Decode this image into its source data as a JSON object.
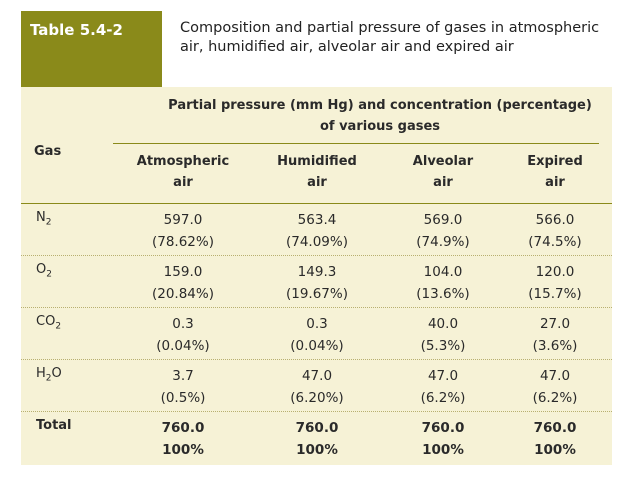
{
  "table_number": "Table 5.4-2",
  "caption": "Composition and partial pressure of gases in atmospheric air, humidified air, alveolar air and expired air",
  "gas_header": "Gas",
  "span_header": "Partial pressure (mm Hg) and concentration (percentage) of various gases",
  "columns": [
    {
      "line1": "Atmospheric",
      "line2": "air"
    },
    {
      "line1": "Humidified",
      "line2": "air"
    },
    {
      "line1": "Alveolar",
      "line2": "air"
    },
    {
      "line1": "Expired",
      "line2": "air"
    }
  ],
  "rows": [
    {
      "gas_base": "N",
      "gas_sub": "2",
      "values": [
        {
          "pressure": "597.0",
          "percent": "(78.62%)"
        },
        {
          "pressure": "563.4",
          "percent": "(74.09%)"
        },
        {
          "pressure": "569.0",
          "percent": "(74.9%)"
        },
        {
          "pressure": "566.0",
          "percent": "(74.5%)"
        }
      ]
    },
    {
      "gas_base": "O",
      "gas_sub": "2",
      "values": [
        {
          "pressure": "159.0",
          "percent": "(20.84%)"
        },
        {
          "pressure": "149.3",
          "percent": "(19.67%)"
        },
        {
          "pressure": "104.0",
          "percent": "(13.6%)"
        },
        {
          "pressure": "120.0",
          "percent": "(15.7%)"
        }
      ]
    },
    {
      "gas_base": "CO",
      "gas_sub": "2",
      "values": [
        {
          "pressure": "0.3",
          "percent": "(0.04%)"
        },
        {
          "pressure": "0.3",
          "percent": "(0.04%)"
        },
        {
          "pressure": "40.0",
          "percent": "(5.3%)"
        },
        {
          "pressure": "27.0",
          "percent": "(3.6%)"
        }
      ]
    },
    {
      "gas_base": "H",
      "gas_sub": "2",
      "gas_tail": "O",
      "values": [
        {
          "pressure": "3.7",
          "percent": "(0.5%)"
        },
        {
          "pressure": "47.0",
          "percent": "(6.20%)"
        },
        {
          "pressure": "47.0",
          "percent": "(6.2%)"
        },
        {
          "pressure": "47.0",
          "percent": "(6.2%)"
        }
      ]
    }
  ],
  "total": {
    "label": "Total",
    "values": [
      {
        "pressure": "760.0",
        "percent": "100%"
      },
      {
        "pressure": "760.0",
        "percent": "100%"
      },
      {
        "pressure": "760.0",
        "percent": "100%"
      },
      {
        "pressure": "760.0",
        "percent": "100%"
      }
    ]
  },
  "colors": {
    "accent": "#8a8a1a",
    "panel": "#f6f2d6"
  }
}
